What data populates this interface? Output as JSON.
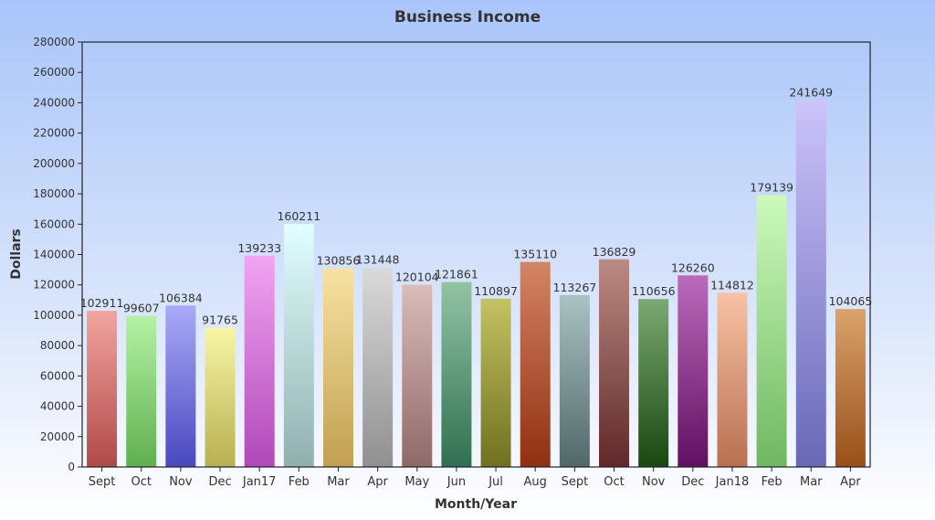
{
  "chart_data": {
    "type": "bar",
    "title": "Business Income",
    "xlabel": "Month/Year",
    "ylabel": "Dollars",
    "ylim": [
      0,
      280000
    ],
    "yticks": [
      0,
      20000,
      40000,
      60000,
      80000,
      100000,
      120000,
      140000,
      160000,
      180000,
      200000,
      220000,
      240000,
      260000,
      280000
    ],
    "grid": false,
    "categories": [
      "Sept",
      "Oct",
      "Nov",
      "Dec",
      "Jan17",
      "Feb",
      "Mar",
      "Apr",
      "May",
      "Jun",
      "Jul",
      "Aug",
      "Sept",
      "Oct",
      "Nov",
      "Dec",
      "Jan18",
      "Feb",
      "Mar",
      "Apr"
    ],
    "values": [
      102911,
      99607,
      106384,
      91765,
      139233,
      160211,
      130856,
      131448,
      120104,
      121861,
      110897,
      135110,
      113267,
      136829,
      110656,
      126260,
      114812,
      179139,
      241649,
      104065
    ],
    "colors": [
      [
        "#f2a4a0",
        "#b04a48"
      ],
      [
        "#b4f2a4",
        "#5fb04e"
      ],
      [
        "#aaaaf8",
        "#4848c0"
      ],
      [
        "#f8f6a4",
        "#b8b050"
      ],
      [
        "#f2a4f2",
        "#b048b8"
      ],
      [
        "#e2ffff",
        "#90b0b0"
      ],
      [
        "#f8e2a0",
        "#c0a050"
      ],
      [
        "#dadada",
        "#909090"
      ],
      [
        "#dabcb8",
        "#906868"
      ],
      [
        "#92c4a4",
        "#2f7050"
      ],
      [
        "#c4c262",
        "#707020"
      ],
      [
        "#d48464",
        "#903010"
      ],
      [
        "#aac2c2",
        "#4f6868"
      ],
      [
        "#bc8a84",
        "#602828"
      ],
      [
        "#7aaa72",
        "#184810"
      ],
      [
        "#bc6abc",
        "#601060"
      ],
      [
        "#f8c2a4",
        "#b87050"
      ],
      [
        "#ccfabc",
        "#6eb860"
      ],
      [
        "#ccc4fa",
        "#6868b8"
      ],
      [
        "#daa26a",
        "#985018"
      ]
    ]
  }
}
